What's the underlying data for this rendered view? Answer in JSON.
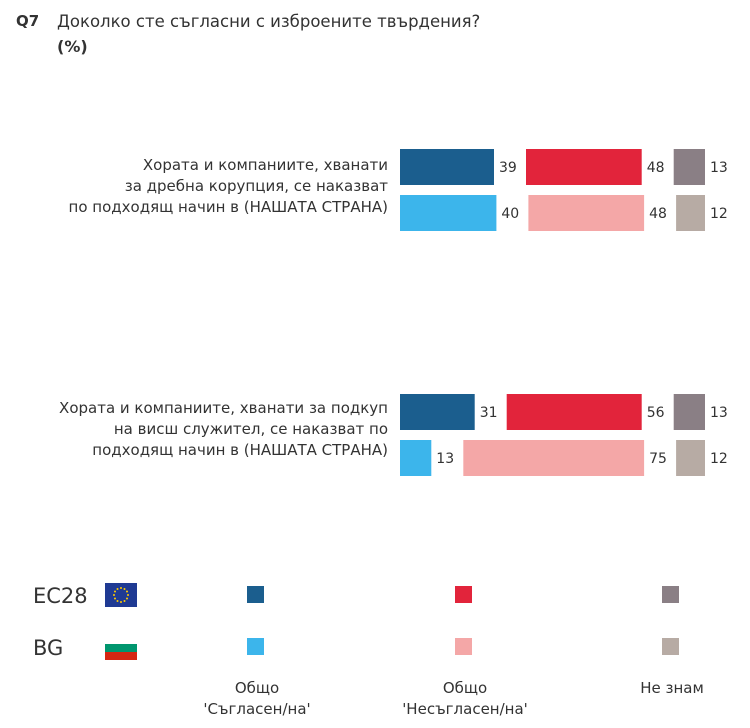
{
  "question": {
    "number": "Q7",
    "text": "Доколко сте съгласни с изброените твърдения?",
    "unit": "(%)"
  },
  "chart_data": {
    "type": "bar",
    "orientation": "horizontal",
    "stacked": false,
    "categories": [
      {
        "lines": [
          "Хората и компаниите, хванати",
          "за дребна корупция, се наказват",
          "по подходящ начин в (НАШАТА СТРАНА)"
        ]
      },
      {
        "lines": [
          "Хората и компаниите, хванати за подкуп",
          "на висш служител, се наказват по",
          "подходящ начин в (НАШАТА СТРАНА)"
        ]
      }
    ],
    "series": [
      {
        "name": "EC28",
        "values": [
          [
            39,
            48,
            13
          ],
          [
            31,
            56,
            13
          ]
        ]
      },
      {
        "name": "BG",
        "values": [
          [
            40,
            48,
            12
          ],
          [
            13,
            75,
            12
          ]
        ]
      }
    ],
    "answer_labels": [
      "Общо 'Съгласен/на'",
      "Общо 'Несъгласен/на'",
      "Не знам"
    ],
    "xlim": [
      0,
      100
    ]
  },
  "legend": {
    "rows": [
      {
        "label": "ЕС28",
        "flag": "eu-flag",
        "colors": [
          "#1b5e8e",
          "#e2243b",
          "#8a7f85"
        ]
      },
      {
        "label": "BG",
        "flag": "bg-flag",
        "colors": [
          "#3cb5eb",
          "#f4a7a7",
          "#b7aba4"
        ]
      }
    ],
    "categories": [
      {
        "line1": "Общо",
        "line2": "'Съгласен/на'"
      },
      {
        "line1": "Общо",
        "line2": "'Несъгласен/на'"
      },
      {
        "line1": "Не знам",
        "line2": ""
      }
    ]
  }
}
